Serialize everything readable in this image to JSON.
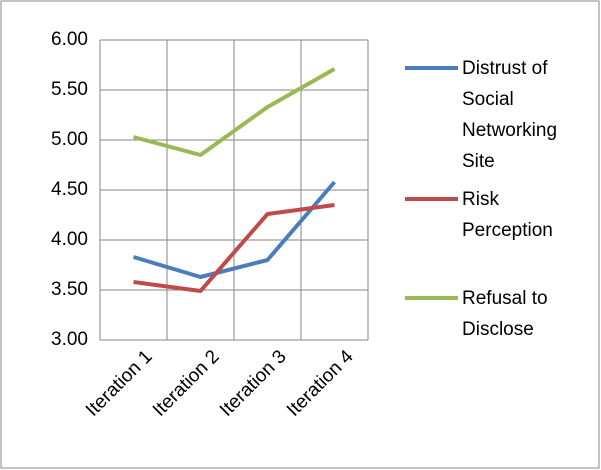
{
  "chart_data": {
    "type": "line",
    "categories": [
      "Iteration 1",
      "Iteration 2",
      "Iteration 3",
      "Iteration 4"
    ],
    "series": [
      {
        "name": "Distrust of Social Networking Site",
        "color": "#4a7ebb",
        "values": [
          3.83,
          3.63,
          3.8,
          4.58
        ]
      },
      {
        "name": "Risk Perception",
        "color": "#be4b48",
        "values": [
          3.58,
          3.49,
          4.26,
          4.35
        ]
      },
      {
        "name": "Refusal to Disclose",
        "color": "#98b954",
        "values": [
          5.03,
          4.85,
          5.33,
          5.71
        ]
      }
    ],
    "ylim": [
      3,
      6
    ],
    "yticks": [
      {
        "value": 3,
        "label": "3.00"
      },
      {
        "value": 3.5,
        "label": "3.50"
      },
      {
        "value": 4,
        "label": "4.00"
      },
      {
        "value": 4.5,
        "label": "4.50"
      },
      {
        "value": 5,
        "label": "5.00"
      },
      {
        "value": 5.5,
        "label": "5.50"
      },
      {
        "value": 6,
        "label": "6.00"
      }
    ],
    "grid": true,
    "legend": "right"
  }
}
